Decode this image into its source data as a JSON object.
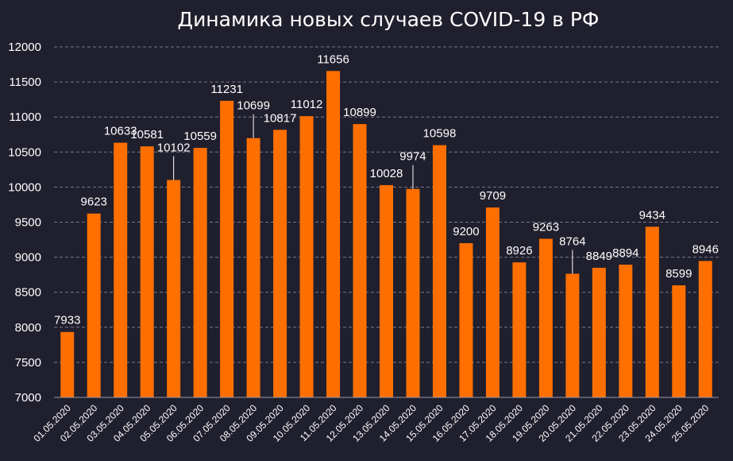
{
  "chart_data": {
    "type": "bar",
    "title": "Динамика новых случаев COVID-19 в РФ",
    "xlabel": "",
    "ylabel": "",
    "ylim": [
      7000,
      12000
    ],
    "yticks": [
      7000,
      7500,
      8000,
      8500,
      9000,
      9500,
      10000,
      10500,
      11000,
      11500,
      12000
    ],
    "grid": true,
    "bar_color": "#ff6f00",
    "categories": [
      "01.05.2020",
      "02.05.2020",
      "03.05.2020",
      "04.05.2020",
      "05.05.2020",
      "06.05.2020",
      "07.05.2020",
      "08.05.2020",
      "09.05.2020",
      "10.05.2020",
      "11.05.2020",
      "12.05.2020",
      "13.05.2020",
      "14.05.2020",
      "15.05.2020",
      "16.05.2020",
      "17.05.2020",
      "18.05.2020",
      "19.05.2020",
      "20.05.2020",
      "21.05.2020",
      "22.05.2020",
      "23.05.2020",
      "24.05.2020",
      "25.05.2020"
    ],
    "values": [
      7933,
      9623,
      10633,
      10581,
      10102,
      10559,
      11231,
      10699,
      10817,
      11012,
      11656,
      10899,
      10028,
      9974,
      10598,
      9200,
      9709,
      8926,
      9263,
      8764,
      8849,
      8894,
      9434,
      8599,
      8946
    ]
  },
  "colors": {
    "background": "#1f1f2d",
    "text": "#ffffff",
    "grid": "#7a7a8a"
  }
}
